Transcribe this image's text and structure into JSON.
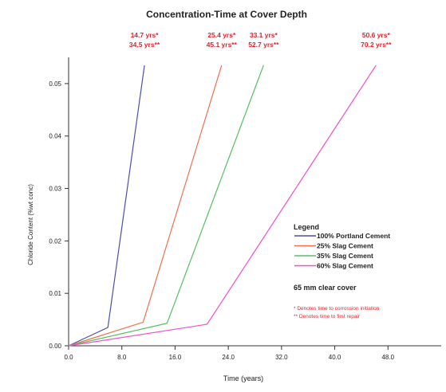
{
  "chart_data": {
    "type": "line",
    "title": "Concentration-Time at Cover Depth",
    "xlabel": "Time (years)",
    "ylabel": "Chloride Content (%wt conc)",
    "xlim": [
      0,
      56
    ],
    "ylim": [
      0,
      0.055
    ],
    "xticks": [
      "0.0",
      "8.0",
      "16.0",
      "24.0",
      "32.0",
      "40.0",
      "48.0"
    ],
    "yticks": [
      "0.00",
      "0.01",
      "0.02",
      "0.03",
      "0.04",
      "0.05"
    ],
    "grid": false,
    "legend_position": "right",
    "series": [
      {
        "name": "100% Portland Cement",
        "color": "#4a4fa8",
        "x": [
          0,
          5.9,
          11.4
        ],
        "y": [
          0,
          0.0035,
          0.0535
        ],
        "annotation": [
          "14.7 yrs*",
          "34.5 yrs**"
        ]
      },
      {
        "name": "25% Slag Cement",
        "color": "#f07050",
        "x": [
          0,
          11.2,
          23.0
        ],
        "y": [
          0,
          0.0045,
          0.0535
        ],
        "annotation": [
          "25.4 yrs*",
          "45.1 yrs**"
        ]
      },
      {
        "name": "35% Slag Cement",
        "color": "#55c060",
        "x": [
          0,
          14.8,
          29.3
        ],
        "y": [
          0,
          0.0043,
          0.0535
        ],
        "annotation": [
          "33.1 yrs*",
          "52.7 yrs**"
        ]
      },
      {
        "name": "60% Slag Cement",
        "color": "#f050c8",
        "x": [
          0,
          20.8,
          46.2
        ],
        "y": [
          0,
          0.0041,
          0.0535
        ],
        "annotation": [
          "50.6 yrs*",
          "70.2 yrs**"
        ]
      }
    ],
    "legend": {
      "title": "Legend",
      "note": "65 mm clear cover",
      "footnotes": [
        "* Denotes time to corrossion initiation",
        "** Denotes time to first repair"
      ]
    },
    "colors": {
      "axis": "#333333",
      "annotation": "#e8202a",
      "text": "#222222"
    }
  }
}
